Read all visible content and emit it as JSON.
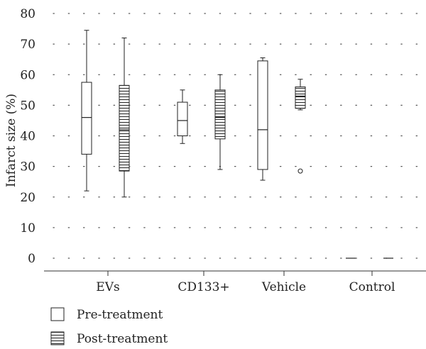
{
  "chart_data": {
    "type": "box",
    "categories": [
      "EVs",
      "CD133+",
      "Vehicle",
      "Control"
    ],
    "ylabel": "Infarct size (%)",
    "xlabel": "",
    "ylim": [
      0,
      80
    ],
    "yticks": [
      0,
      10,
      20,
      30,
      40,
      50,
      60,
      70,
      80
    ],
    "grid": "horizontal-dotted",
    "legend": "bottom-left",
    "series": [
      {
        "name": "Pre-treatment",
        "pattern": "plain",
        "boxes": [
          {
            "whisker_low": 22,
            "q1": 34,
            "median": 46,
            "q3": 57.5,
            "whisker_high": 74.5,
            "outliers": []
          },
          {
            "whisker_low": 37.5,
            "q1": 40,
            "median": 45,
            "q3": 51,
            "whisker_high": 55,
            "outliers": []
          },
          {
            "whisker_low": 25.5,
            "q1": 29,
            "median": 42,
            "q3": 64.5,
            "whisker_high": 65.5,
            "outliers": []
          },
          {
            "whisker_low": 0,
            "q1": 0,
            "median": 0,
            "q3": 0,
            "whisker_high": 0,
            "outliers": []
          }
        ]
      },
      {
        "name": "Post-treatment",
        "pattern": "horizontal-stripes",
        "boxes": [
          {
            "whisker_low": 20,
            "q1": 28.5,
            "median": 42,
            "q3": 56.5,
            "whisker_high": 72,
            "outliers": []
          },
          {
            "whisker_low": 29,
            "q1": 39,
            "median": 46,
            "q3": 55,
            "whisker_high": 60,
            "outliers": []
          },
          {
            "whisker_low": 48.5,
            "q1": 49,
            "median": 53,
            "q3": 56,
            "whisker_high": 58.5,
            "outliers": [
              28.5
            ]
          },
          {
            "whisker_low": 0,
            "q1": 0,
            "median": 0,
            "q3": 0,
            "whisker_high": 0,
            "outliers": []
          }
        ]
      }
    ]
  }
}
